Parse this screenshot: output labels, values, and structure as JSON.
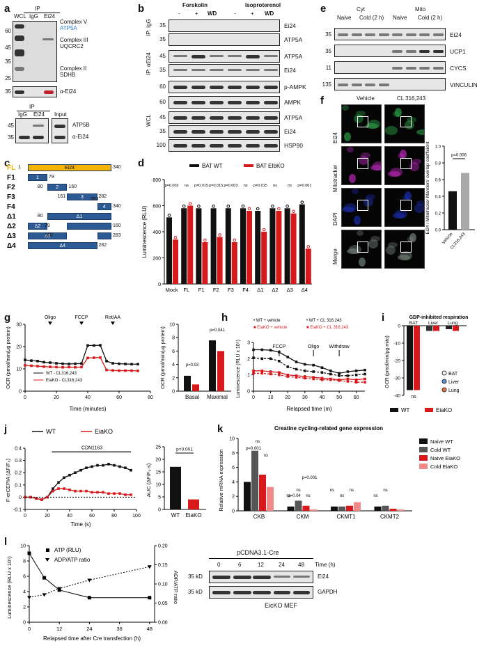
{
  "panels": [
    "a",
    "b",
    "c",
    "d",
    "e",
    "f",
    "g",
    "h",
    "i",
    "j",
    "k",
    "l"
  ],
  "a": {
    "lanes_top": [
      "WCL",
      "IgG",
      "Ei24"
    ],
    "ip_label": "IP",
    "arrows": [
      "Complex V",
      "Complex III",
      "UQCRC2",
      "Complex II",
      "SDHB"
    ],
    "atp5a": "ATP5A",
    "mw_top": [
      "60",
      "45",
      "35",
      "25"
    ],
    "mw_bottom": [
      "35"
    ],
    "strip_label": "α-Ei24",
    "ip2_label": "IP",
    "lanes_bottom": [
      "IgG",
      "Ei24",
      "Input"
    ],
    "mw_b2": [
      "45",
      "35"
    ],
    "b2_labels": [
      "ATP5B",
      "α-Ei24"
    ]
  },
  "b": {
    "groups": [
      "Forskolin",
      "Isoproterenol"
    ],
    "conds": [
      "-",
      "+",
      "WD",
      "-",
      "+",
      "WD"
    ],
    "ip_igg": "IP: IgG",
    "ip_ei24": "IP: αEi24",
    "wcl": "WCL",
    "rows": [
      "Ei24",
      "ATP5A",
      "ATP5A",
      "Ei24",
      "p-AMPK",
      "AMPK",
      "ATP5A",
      "Ei24",
      "HSP90"
    ],
    "mw": [
      "35",
      "35",
      "45",
      "35",
      "60",
      "60",
      "45",
      "35",
      "100"
    ]
  },
  "c": {
    "fragments": [
      {
        "label": "FL",
        "name": "Ei24",
        "start": "1",
        "end": "340"
      },
      {
        "label": "F1",
        "name": "1",
        "start": "",
        "end": "79"
      },
      {
        "label": "F2",
        "name": "2",
        "start": "80",
        "end": "160"
      },
      {
        "label": "F3",
        "name": "3",
        "start": "161",
        "end": "282"
      },
      {
        "label": "F4",
        "name": "4",
        "start": "",
        "end": "340"
      },
      {
        "label": "Δ1",
        "name": "Δ1",
        "start": "80",
        "end": ""
      },
      {
        "label": "Δ2",
        "name": "Δ2",
        "start": "79",
        "end": "160"
      },
      {
        "label": "Δ3",
        "name": "Δ3",
        "start": "160",
        "end": "283"
      },
      {
        "label": "Δ4",
        "name": "Δ4",
        "start": "",
        "end": "282"
      }
    ],
    "f4_start": "283"
  },
  "d": {
    "legend": [
      "BAT WT",
      "BAT EIbKO"
    ],
    "ylabel": "Luminescence (RLU)",
    "pvals": [
      "p=0.002",
      "ns",
      "p=0.015",
      "p=0.015",
      "p=0.003",
      "ns",
      "p=0.015",
      "ns",
      "ns",
      "p=0.001"
    ]
  },
  "e": {
    "groups": [
      "Cyt",
      "Mito"
    ],
    "conds": [
      "Naive",
      "Cold (2 h)",
      "Naive",
      "Cold (2 h)"
    ],
    "rows": [
      "Ei24",
      "UCP1",
      "CYCS",
      "VINCULIN"
    ],
    "mw": [
      "35",
      "35",
      "11",
      "135"
    ]
  },
  "f": {
    "cols": [
      "Vehicle",
      "CL 316,243"
    ],
    "rows": [
      "Ei24",
      "Mitotracker",
      "DAPI",
      "Merge"
    ],
    "ylabel": "Ei24 / Mitotracker Manders' overlap coefficient",
    "pval": "p=0.006",
    "xcats": [
      "Vehicle",
      "CL316,243"
    ]
  },
  "g": {
    "markers": [
      "Oligo",
      "FCCP",
      "Rot/AA"
    ],
    "ylabel": "OCR (pmol/min/μg protein)",
    "xlabel": "Time (minutes)",
    "legend": [
      "WT - CL316,243",
      "EiaKO - CL316,243"
    ],
    "bar_ylabel": "OCR (pmol/min/μg protein)",
    "bar_cats": [
      "Basal",
      "Maximal"
    ],
    "pvals": [
      "p=0.03",
      "p=0.041"
    ]
  },
  "h": {
    "legend": [
      "WT + vehicle",
      "WT + CL 316,243",
      "EiaKO + vehicle",
      "EiaKO + CL 316,243"
    ],
    "markers": [
      "FCCP",
      "Oligo",
      "Withdraw"
    ],
    "ylabel": "Luminescence (RLU x 10⁵)",
    "xlabel": "Relapsed time (m)"
  },
  "i": {
    "title": "GDP-inhibited respiration",
    "groups": [
      "BAT",
      "Liver",
      "Lung"
    ],
    "ylabel": "OCR (pmol/min/μg mito)",
    "ns": "ns",
    "legend": [
      "BAT",
      "Liver",
      "Lung"
    ],
    "bottom_legend": [
      "WT",
      "EiaKO"
    ]
  },
  "j": {
    "legend": [
      "WT",
      "EiaKO"
    ],
    "drug": "CDN1163",
    "ylabel": "F-erCEPIA (ΔF/F₀)",
    "xlabel": "Time (s)",
    "auc_ylabel": "AUC (ΔF/F₀·s)",
    "auc_cats": [
      "WT",
      "EiaKO"
    ],
    "pval": "p=0.001"
  },
  "k": {
    "title": "Creatine cycling-related gene expression",
    "ylabel": "Relative mRNA expression",
    "genes": [
      "CKB",
      "CKM",
      "CKMT1",
      "CKMT2"
    ],
    "legend": [
      "Naive WT",
      "Cold WT",
      "Naive EiaKO",
      "Cold EiaKO"
    ],
    "pvals": [
      "ns",
      "p=0.001",
      "ns",
      "p=0.04",
      "p=0.001",
      "ns",
      "ns",
      "ns",
      "ns",
      "ns",
      "ns",
      "ns",
      "ns"
    ]
  },
  "l": {
    "legend": [
      "ATP (RLU)",
      "ADP/ATP ratio"
    ],
    "ylabel": "Luminescence (RLU x 10⁵)",
    "y2label": "ADP/ATP ratio",
    "xlabel": "Relapsed time after Cre transfection (h)",
    "blot_title": "pCDNA3.1-Cre",
    "times": [
      "0",
      "6",
      "12",
      "24",
      "48"
    ],
    "time_label": "Time (h)",
    "rows": [
      "Ei24",
      "GAPDH"
    ],
    "mw": [
      "35 kD",
      "35 kD"
    ],
    "cell": "EicKO MEF"
  },
  "colors": {
    "wt": "#111111",
    "ko": "#d7191c",
    "fl": "#f5b301",
    "frag": "#2c5a94",
    "liver": "#5b8fd6",
    "lung": "#e8763a"
  },
  "chart_data": [
    {
      "panel": "d",
      "type": "bar",
      "categories": [
        "Mock",
        "FL",
        "F1",
        "F2",
        "F3",
        "F4",
        "Δ1",
        "Δ2",
        "Δ3",
        "Δ4"
      ],
      "ylim": [
        0,
        800
      ],
      "ylabel": "Luminescence (RLU)",
      "series": [
        {
          "name": "BAT WT",
          "values": [
            510,
            580,
            580,
            580,
            580,
            580,
            560,
            580,
            580,
            610
          ]
        },
        {
          "name": "BAT EIbKO",
          "values": [
            340,
            600,
            320,
            360,
            320,
            560,
            400,
            560,
            540,
            270
          ]
        }
      ]
    },
    {
      "panel": "f",
      "type": "bar",
      "categories": [
        "Vehicle",
        "CL316,243"
      ],
      "ylim": [
        0,
        1.0
      ],
      "yticks": [
        0,
        0.2,
        0.4,
        0.6,
        0.8,
        1.0
      ],
      "series": [
        {
          "values": [
            0.46,
            0.68
          ]
        }
      ]
    },
    {
      "panel": "g",
      "type": "line",
      "x": [
        0,
        4,
        8,
        12,
        16,
        20,
        24,
        28,
        32,
        36,
        40,
        44,
        48,
        52,
        56,
        60,
        64,
        68,
        72
      ],
      "xlim": [
        0,
        80
      ],
      "ylim": [
        0,
        30
      ],
      "xlabel": "Time (minutes)",
      "series": [
        {
          "name": "WT - CL316,243",
          "values": [
            14,
            13.7,
            13.5,
            13,
            12.8,
            12.5,
            12.3,
            12.2,
            12.3,
            12.4,
            20.5,
            20.5,
            20.6,
            13.5,
            12.5,
            12.3,
            12.2,
            12.1,
            12.1
          ]
        },
        {
          "name": "EiaKO - CL316,243",
          "values": [
            11.6,
            11.4,
            11.2,
            11,
            10.9,
            10.8,
            10.7,
            10.8,
            10.7,
            10.8,
            14.9,
            15,
            15.1,
            9.5,
            9.3,
            9.2,
            9.2,
            9.2,
            9.1
          ]
        }
      ]
    },
    {
      "panel": "g2",
      "type": "bar",
      "categories": [
        "Basal",
        "Maximal"
      ],
      "ylim": [
        0,
        10
      ],
      "series": [
        {
          "name": "WT",
          "values": [
            2.3,
            7.6
          ]
        },
        {
          "name": "EiaKO",
          "values": [
            1.0,
            6.0
          ]
        }
      ]
    },
    {
      "panel": "h",
      "type": "line",
      "x": [
        0,
        5,
        10,
        15,
        20,
        25,
        30,
        35,
        40,
        45,
        50,
        55,
        60,
        65
      ],
      "xlim": [
        0,
        65
      ],
      "ylim": [
        0,
        3
      ],
      "xlabel": "Relapsed time (m)",
      "series": [
        {
          "name": "WT + vehicle",
          "values": [
            2.55,
            2.55,
            2.52,
            2.4,
            2.1,
            1.8,
            1.65,
            1.6,
            1.45,
            1.25,
            1.1,
            1.2,
            1.25,
            1.3
          ]
        },
        {
          "name": "WT + CL 316,243",
          "values": [
            2.05,
            2.0,
            2.0,
            1.85,
            1.5,
            1.35,
            1.25,
            1.2,
            1.15,
            1.05,
            0.95,
            0.95,
            1.0,
            1.05
          ]
        },
        {
          "name": "EiaKO + vehicle",
          "values": [
            1.25,
            1.25,
            1.2,
            1.15,
            1.0,
            0.95,
            0.9,
            0.85,
            0.8,
            0.75,
            0.7,
            0.75,
            0.7,
            0.75
          ]
        },
        {
          "name": "EiaKO + CL 316,243",
          "values": [
            1.1,
            1.1,
            1.05,
            1.0,
            0.9,
            0.85,
            0.8,
            0.75,
            0.7,
            0.7,
            0.65,
            0.6,
            0.55,
            0.55
          ]
        }
      ]
    },
    {
      "panel": "i",
      "type": "bar",
      "categories": [
        "BAT",
        "Liver",
        "Lung"
      ],
      "ylim": [
        -40,
        0
      ],
      "series": [
        {
          "name": "WT",
          "values": [
            -37,
            -3,
            -2
          ]
        },
        {
          "name": "EiaKO",
          "values": [
            -37,
            -3,
            -3
          ]
        }
      ]
    },
    {
      "panel": "j",
      "type": "line",
      "x": [
        0,
        5,
        10,
        15,
        20,
        25,
        30,
        35,
        40,
        45,
        50,
        55,
        60,
        65,
        70,
        75,
        80,
        85,
        90,
        95
      ],
      "xlim": [
        0,
        100
      ],
      "ylim": [
        -0.1,
        0.4
      ],
      "xlabel": "Time (s)",
      "series": [
        {
          "name": "WT",
          "values": [
            0,
            0,
            -0.01,
            -0.02,
            0,
            0.07,
            0.12,
            0.16,
            0.18,
            0.2,
            0.22,
            0.24,
            0.25,
            0.26,
            0.26,
            0.27,
            0.26,
            0.25,
            0.24,
            0.22
          ]
        },
        {
          "name": "EiaKO",
          "values": [
            0,
            0,
            -0.01,
            -0.02,
            0,
            0.05,
            0.07,
            0.07,
            0.06,
            0.05,
            0.05,
            0.05,
            0.04,
            0.04,
            0.04,
            0.03,
            0.03,
            0.03,
            0.02,
            0.02
          ]
        }
      ]
    },
    {
      "panel": "j2",
      "type": "bar",
      "categories": [
        "WT",
        "EiaKO"
      ],
      "ylim": [
        0,
        25
      ],
      "series": [
        {
          "values": [
            17,
            4
          ]
        }
      ]
    },
    {
      "panel": "k",
      "type": "bar",
      "categories": [
        "CKB",
        "CKM",
        "CKMT1",
        "CKMT2"
      ],
      "ylim": [
        0,
        10
      ],
      "series": [
        {
          "name": "Naive WT",
          "values": [
            4,
            0.6,
            0.6,
            0.6
          ]
        },
        {
          "name": "Cold WT",
          "values": [
            8.3,
            1.4,
            0.6,
            0.7
          ]
        },
        {
          "name": "Naive EiaKO",
          "values": [
            5,
            0.7,
            0.7,
            0.3
          ]
        },
        {
          "name": "Cold EiaKO",
          "values": [
            3.3,
            0.2,
            1.2,
            0.2
          ]
        }
      ]
    },
    {
      "panel": "l",
      "type": "line",
      "x": [
        0,
        6,
        12,
        24,
        48
      ],
      "xlim": [
        0,
        50
      ],
      "ylim": [
        0,
        10
      ],
      "y2lim": [
        0,
        0.2
      ],
      "xlabel": "Relapsed time after Cre transfection (h)",
      "series": [
        {
          "name": "ATP (RLU)",
          "values": [
            9,
            5.8,
            4.2,
            3.2,
            3.2
          ]
        },
        {
          "name": "ADP/ATP ratio",
          "values": [
            0.065,
            0.072,
            0.088,
            0.11,
            0.145
          ]
        }
      ]
    }
  ]
}
